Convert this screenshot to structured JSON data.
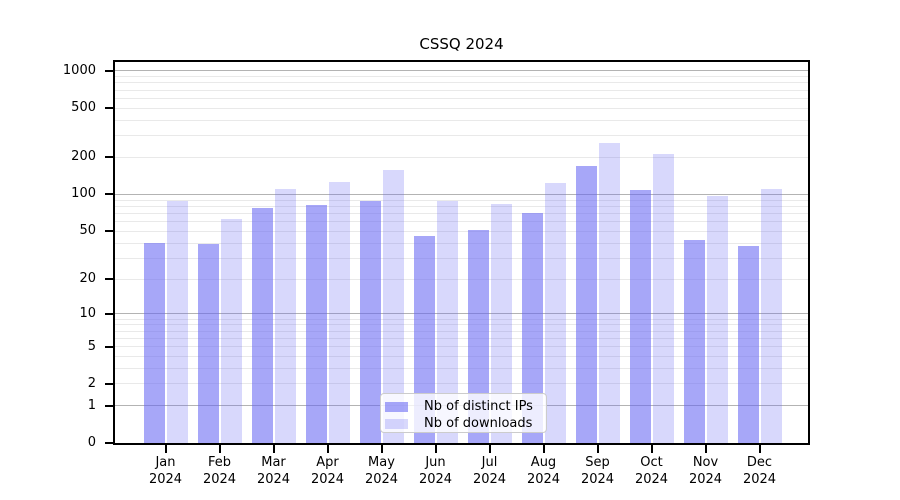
{
  "chart_data": {
    "type": "bar",
    "title": "CSSQ 2024",
    "categories": [
      "Jan 2024",
      "Feb 2024",
      "Mar 2024",
      "Apr 2024",
      "May 2024",
      "Jun 2024",
      "Jul 2024",
      "Aug 2024",
      "Sep 2024",
      "Oct 2024",
      "Nov 2024",
      "Dec 2024"
    ],
    "series": [
      {
        "name": "Nb of distinct IPs",
        "color": "rgba(100,100,243,0.57)",
        "values": [
          40,
          39,
          77,
          82,
          88,
          46,
          51,
          70,
          169,
          108,
          42,
          38
        ]
      },
      {
        "name": "Nb of downloads",
        "color": "rgba(100,100,243,0.25)",
        "values": [
          88,
          63,
          110,
          126,
          157,
          88,
          84,
          125,
          262,
          214,
          98,
          110
        ]
      }
    ],
    "xlabel": "",
    "ylabel": "",
    "yscale": "log1p",
    "yticks": [
      0,
      1,
      2,
      5,
      10,
      20,
      50,
      100,
      200,
      500,
      1000
    ],
    "ylim": [
      0,
      1180
    ],
    "grid": "both",
    "legend_position": "lower center",
    "colors": {
      "bar_base": "#6464f3",
      "grid_major": "#b3b3b3",
      "grid_minor": "#e9e9e9",
      "spine": "#000000",
      "legend_border": "#cccccc"
    }
  }
}
